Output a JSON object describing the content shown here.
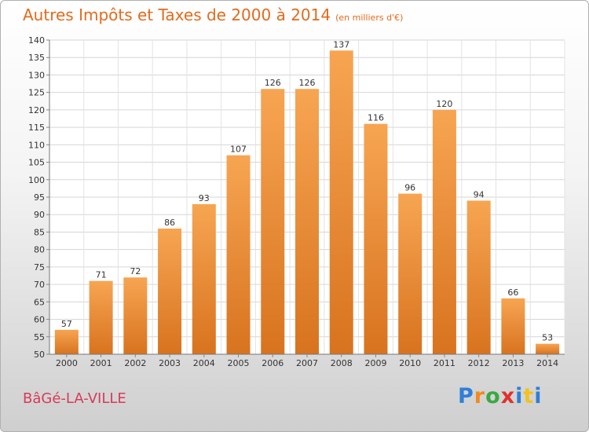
{
  "title": "Autres Impôts et Taxes de 2000 à 2014",
  "title_unit": "(en milliers d'€)",
  "commune": "BâGé-LA-VILLE",
  "brand": {
    "letters": [
      "P",
      "r",
      "o",
      "x",
      "i",
      "t",
      "i"
    ],
    "colors": [
      "#2e7fd6",
      "#f28a1e",
      "#3aa844",
      "#e0312b",
      "#2e7fd6",
      "#f2c21e",
      "#2e7fd6"
    ]
  },
  "colors": {
    "bar_light": "#f7a552",
    "bar_dark": "#d8731f",
    "title": "#e46a1c",
    "commune": "#d83a5a"
  },
  "chart_data": {
    "type": "bar",
    "categories": [
      "2000",
      "2001",
      "2002",
      "2003",
      "2004",
      "2005",
      "2006",
      "2007",
      "2008",
      "2009",
      "2010",
      "2011",
      "2012",
      "2013",
      "2014"
    ],
    "values": [
      57,
      71,
      72,
      86,
      93,
      107,
      126,
      126,
      137,
      116,
      96,
      120,
      94,
      66,
      53
    ],
    "ylim": [
      50,
      140
    ],
    "yticks": [
      50,
      55,
      60,
      65,
      70,
      75,
      80,
      85,
      90,
      95,
      100,
      105,
      110,
      115,
      120,
      125,
      130,
      135,
      140
    ],
    "grid": true,
    "data_labels": true
  }
}
